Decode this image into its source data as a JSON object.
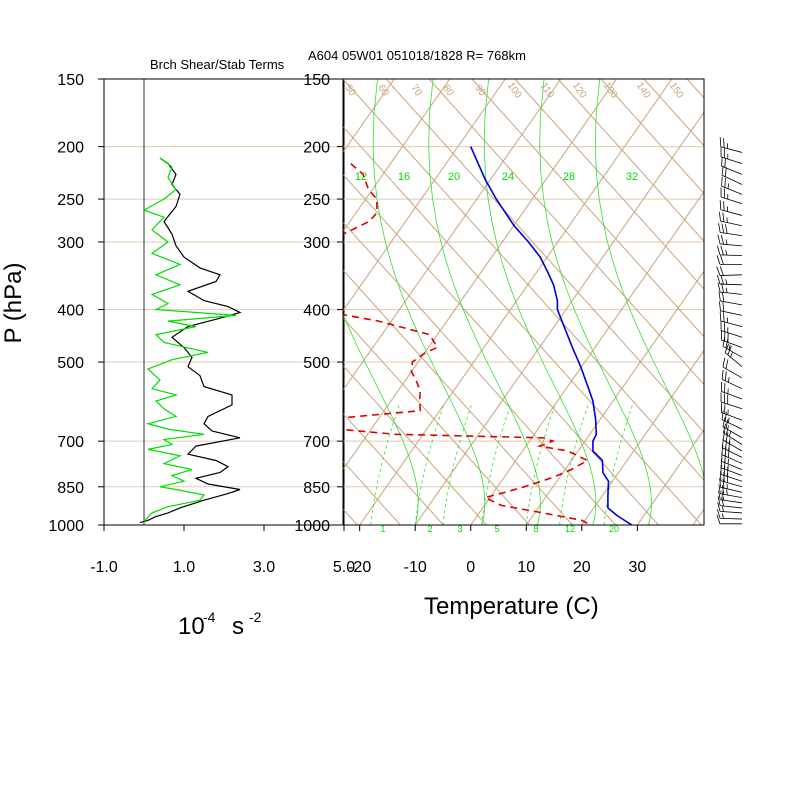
{
  "figure_title": "A604 05W01 051018/1828 R= 768km",
  "colors": {
    "pressure_grid": "#e3c9ad",
    "skewt_lines": "#c8a47c",
    "moist": "#33dd33",
    "temperature": "#0000dd",
    "dewpoint": "#dd0000",
    "richardson": "#000000",
    "stability": "#00dd00",
    "wind": "#000000"
  },
  "chart_data": [
    {
      "type": "line",
      "panel": "shear-stability",
      "title": "Brch Shear/Stab Terms",
      "xlabel_main": "10",
      "xlabel_exp": "-4",
      "xlabel_unit": "s",
      "xlabel_unit_exp": "-2",
      "ylabel": "P (hPa)",
      "x_ticks": [
        "-1.0",
        "1.0",
        "3.0",
        "5.0"
      ],
      "xlim": [
        -1.0,
        5.0
      ],
      "y_ticks": [
        "150",
        "200",
        "250",
        "300",
        "400",
        "500",
        "700",
        "850",
        "1000"
      ],
      "ylim": [
        1000,
        150
      ],
      "y_scale": "log",
      "series": [
        {
          "color": "#000000",
          "points": [
            [
              -0.1,
              990
            ],
            [
              0.1,
              980
            ],
            [
              0.3,
              965
            ],
            [
              0.6,
              950
            ],
            [
              0.9,
              930
            ],
            [
              1.5,
              900
            ],
            [
              2.1,
              875
            ],
            [
              2.4,
              860
            ],
            [
              1.6,
              840
            ],
            [
              1.3,
              820
            ],
            [
              1.9,
              800
            ],
            [
              2.1,
              780
            ],
            [
              1.8,
              760
            ],
            [
              1.1,
              740
            ],
            [
              1.3,
              715
            ],
            [
              2.4,
              690
            ],
            [
              1.7,
              670
            ],
            [
              1.5,
              650
            ],
            [
              1.6,
              630
            ],
            [
              2.2,
              600
            ],
            [
              2.2,
              575
            ],
            [
              1.5,
              555
            ],
            [
              1.4,
              530
            ],
            [
              1.1,
              510
            ],
            [
              1.2,
              490
            ],
            [
              1.0,
              470
            ],
            [
              0.7,
              450
            ],
            [
              1.1,
              430
            ],
            [
              1.9,
              415
            ],
            [
              2.4,
              405
            ],
            [
              2.1,
              395
            ],
            [
              1.5,
              385
            ],
            [
              1.1,
              370
            ],
            [
              1.8,
              355
            ],
            [
              1.9,
              345
            ],
            [
              1.4,
              335
            ],
            [
              1.0,
              320
            ],
            [
              0.8,
              305
            ],
            [
              0.7,
              290
            ],
            [
              0.5,
              275
            ],
            [
              0.8,
              258
            ],
            [
              0.9,
              245
            ],
            [
              0.7,
              235
            ],
            [
              0.8,
              225
            ],
            [
              0.6,
              215
            ],
            [
              0.4,
              210
            ]
          ]
        },
        {
          "color": "#00dd00",
          "points": [
            [
              0.0,
              985
            ],
            [
              0.2,
              950
            ],
            [
              0.6,
              925
            ],
            [
              1.4,
              900
            ],
            [
              1.5,
              880
            ],
            [
              0.8,
              860
            ],
            [
              0.4,
              850
            ],
            [
              1.0,
              830
            ],
            [
              0.7,
              810
            ],
            [
              1.2,
              790
            ],
            [
              0.5,
              770
            ],
            [
              0.9,
              745
            ],
            [
              0.1,
              725
            ],
            [
              0.7,
              710
            ],
            [
              0.5,
              695
            ],
            [
              1.5,
              680
            ],
            [
              0.6,
              665
            ],
            [
              0.1,
              650
            ],
            [
              0.8,
              630
            ],
            [
              0.5,
              610
            ],
            [
              0.3,
              590
            ],
            [
              0.8,
              575
            ],
            [
              0.2,
              560
            ],
            [
              0.4,
              540
            ],
            [
              0.1,
              515
            ],
            [
              0.7,
              495
            ],
            [
              1.6,
              480
            ],
            [
              0.5,
              460
            ],
            [
              0.3,
              445
            ],
            [
              1.3,
              430
            ],
            [
              0.6,
              420
            ],
            [
              2.3,
              410
            ],
            [
              0.3,
              400
            ],
            [
              0.6,
              390
            ],
            [
              0.2,
              375
            ],
            [
              0.9,
              360
            ],
            [
              0.3,
              345
            ],
            [
              0.9,
              330
            ],
            [
              0.2,
              315
            ],
            [
              0.6,
              300
            ],
            [
              0.2,
              285
            ],
            [
              0.5,
              270
            ],
            [
              0.0,
              262
            ],
            [
              0.5,
              250
            ],
            [
              0.8,
              240
            ],
            [
              0.6,
              228
            ],
            [
              0.7,
              218
            ],
            [
              0.4,
              210
            ]
          ]
        }
      ]
    },
    {
      "type": "line",
      "panel": "skew-t",
      "xlabel": "Temperature (C)",
      "x_ticks": [
        "-20",
        "-10",
        "0",
        "10",
        "20",
        "30"
      ],
      "xlim": [
        -23,
        42
      ],
      "y_ticks": [
        "150",
        "200",
        "250",
        "300",
        "400",
        "500",
        "700",
        "850",
        "1000"
      ],
      "ylim": [
        1000,
        150
      ],
      "isotherm_labels": [
        "12",
        "16",
        "20",
        "24",
        "28",
        "32"
      ],
      "mixing_ratio_labels": [
        "1",
        "2",
        "3",
        "5",
        "8",
        "12",
        "20"
      ],
      "dry_adiabat_labels": [
        "50",
        "60",
        "70",
        "80",
        "90",
        "100",
        "110",
        "120",
        "130",
        "140",
        "150"
      ],
      "series": [
        {
          "name": "",
          "color": "#0000dd",
          "dash": "",
          "points": [
            [
              0.0,
              200
            ],
            [
              2.6,
              230
            ],
            [
              4.6,
              250
            ],
            [
              7.8,
              280
            ],
            [
              10.4,
              300
            ],
            [
              12.5,
              320
            ],
            [
              13.8,
              340
            ],
            [
              14.9,
              360
            ],
            [
              15.6,
              385
            ],
            [
              15.6,
              400
            ],
            [
              17.0,
              435
            ],
            [
              18.3,
              470
            ],
            [
              19.8,
              510
            ],
            [
              21.1,
              555
            ],
            [
              22.0,
              590
            ],
            [
              22.5,
              640
            ],
            [
              22.6,
              680
            ],
            [
              22.0,
              700
            ],
            [
              22.0,
              730
            ],
            [
              23.7,
              760
            ],
            [
              23.8,
              800
            ],
            [
              24.8,
              830
            ],
            [
              24.7,
              880
            ],
            [
              24.7,
              930
            ],
            [
              26.3,
              960
            ],
            [
              29.0,
              1000
            ]
          ]
        },
        {
          "name": "",
          "color": "#dd0000",
          "dash": "7,5",
          "points": [
            [
              -21.6,
              215
            ],
            [
              -19.4,
              225
            ],
            [
              -18.4,
              240
            ],
            [
              -16.9,
              250
            ],
            [
              -16.9,
              265
            ],
            [
              -18.3,
              275
            ],
            [
              -24.4,
              295
            ],
            [
              -26.0,
              305
            ],
            [
              -29.1,
              320
            ],
            [
              -33.2,
              340
            ],
            [
              -34.4,
              350
            ],
            [
              -33.0,
              375
            ],
            [
              -28.0,
              400
            ],
            [
              -16.6,
              420
            ],
            [
              -7.4,
              445
            ],
            [
              -6.0,
              470
            ],
            [
              -8.1,
              480
            ],
            [
              -10.5,
              500
            ],
            [
              -10.7,
              520
            ],
            [
              -9.7,
              545
            ],
            [
              -9.1,
              565
            ],
            [
              -9.2,
              590
            ],
            [
              -9.1,
              615
            ],
            [
              -34.5,
              650
            ],
            [
              -13.6,
              680
            ],
            [
              13.0,
              690
            ],
            [
              14.8,
              700
            ],
            [
              12.4,
              715
            ],
            [
              17.5,
              730
            ],
            [
              21.0,
              760
            ],
            [
              18.1,
              790
            ],
            [
              15.0,
              815
            ],
            [
              12.8,
              830
            ],
            [
              9.6,
              850
            ],
            [
              6.2,
              870
            ],
            [
              2.6,
              890
            ],
            [
              5.5,
              920
            ],
            [
              13.0,
              950
            ],
            [
              20.0,
              980
            ],
            [
              21.5,
              1000
            ]
          ]
        }
      ]
    }
  ],
  "wind_barbs": [
    {
      "p": 205,
      "dir": 285,
      "spd": 25
    },
    {
      "p": 215,
      "dir": 288,
      "spd": 25
    },
    {
      "p": 225,
      "dir": 292,
      "spd": 20
    },
    {
      "p": 235,
      "dir": 295,
      "spd": 20
    },
    {
      "p": 245,
      "dir": 292,
      "spd": 25
    },
    {
      "p": 255,
      "dir": 288,
      "spd": 25
    },
    {
      "p": 268,
      "dir": 285,
      "spd": 25
    },
    {
      "p": 280,
      "dir": 282,
      "spd": 25
    },
    {
      "p": 292,
      "dir": 278,
      "spd": 30
    },
    {
      "p": 305,
      "dir": 275,
      "spd": 25
    },
    {
      "p": 318,
      "dir": 272,
      "spd": 25
    },
    {
      "p": 330,
      "dir": 270,
      "spd": 20
    },
    {
      "p": 345,
      "dir": 268,
      "spd": 20
    },
    {
      "p": 360,
      "dir": 272,
      "spd": 25
    },
    {
      "p": 375,
      "dir": 276,
      "spd": 25
    },
    {
      "p": 392,
      "dir": 280,
      "spd": 20
    },
    {
      "p": 410,
      "dir": 282,
      "spd": 20
    },
    {
      "p": 430,
      "dir": 285,
      "spd": 25
    },
    {
      "p": 450,
      "dir": 288,
      "spd": 25
    },
    {
      "p": 470,
      "dir": 290,
      "spd": 30
    },
    {
      "p": 490,
      "dir": 300,
      "spd": 25
    },
    {
      "p": 510,
      "dir": 310,
      "spd": 25
    },
    {
      "p": 535,
      "dir": 300,
      "spd": 20
    },
    {
      "p": 560,
      "dir": 295,
      "spd": 25
    },
    {
      "p": 585,
      "dir": 290,
      "spd": 25
    },
    {
      "p": 610,
      "dir": 288,
      "spd": 30
    },
    {
      "p": 640,
      "dir": 290,
      "spd": 25
    },
    {
      "p": 665,
      "dir": 295,
      "spd": 25
    },
    {
      "p": 690,
      "dir": 300,
      "spd": 20
    },
    {
      "p": 710,
      "dir": 302,
      "spd": 25
    },
    {
      "p": 730,
      "dir": 300,
      "spd": 25
    },
    {
      "p": 750,
      "dir": 296,
      "spd": 30
    },
    {
      "p": 770,
      "dir": 294,
      "spd": 30
    },
    {
      "p": 790,
      "dir": 292,
      "spd": 25
    },
    {
      "p": 810,
      "dir": 290,
      "spd": 25
    },
    {
      "p": 830,
      "dir": 288,
      "spd": 30
    },
    {
      "p": 850,
      "dir": 286,
      "spd": 30
    },
    {
      "p": 870,
      "dir": 283,
      "spd": 25
    },
    {
      "p": 890,
      "dir": 280,
      "spd": 25
    },
    {
      "p": 910,
      "dir": 278,
      "spd": 20
    },
    {
      "p": 930,
      "dir": 276,
      "spd": 20
    },
    {
      "p": 950,
      "dir": 274,
      "spd": 15
    },
    {
      "p": 975,
      "dir": 272,
      "spd": 15
    },
    {
      "p": 995,
      "dir": 270,
      "spd": 10
    }
  ]
}
